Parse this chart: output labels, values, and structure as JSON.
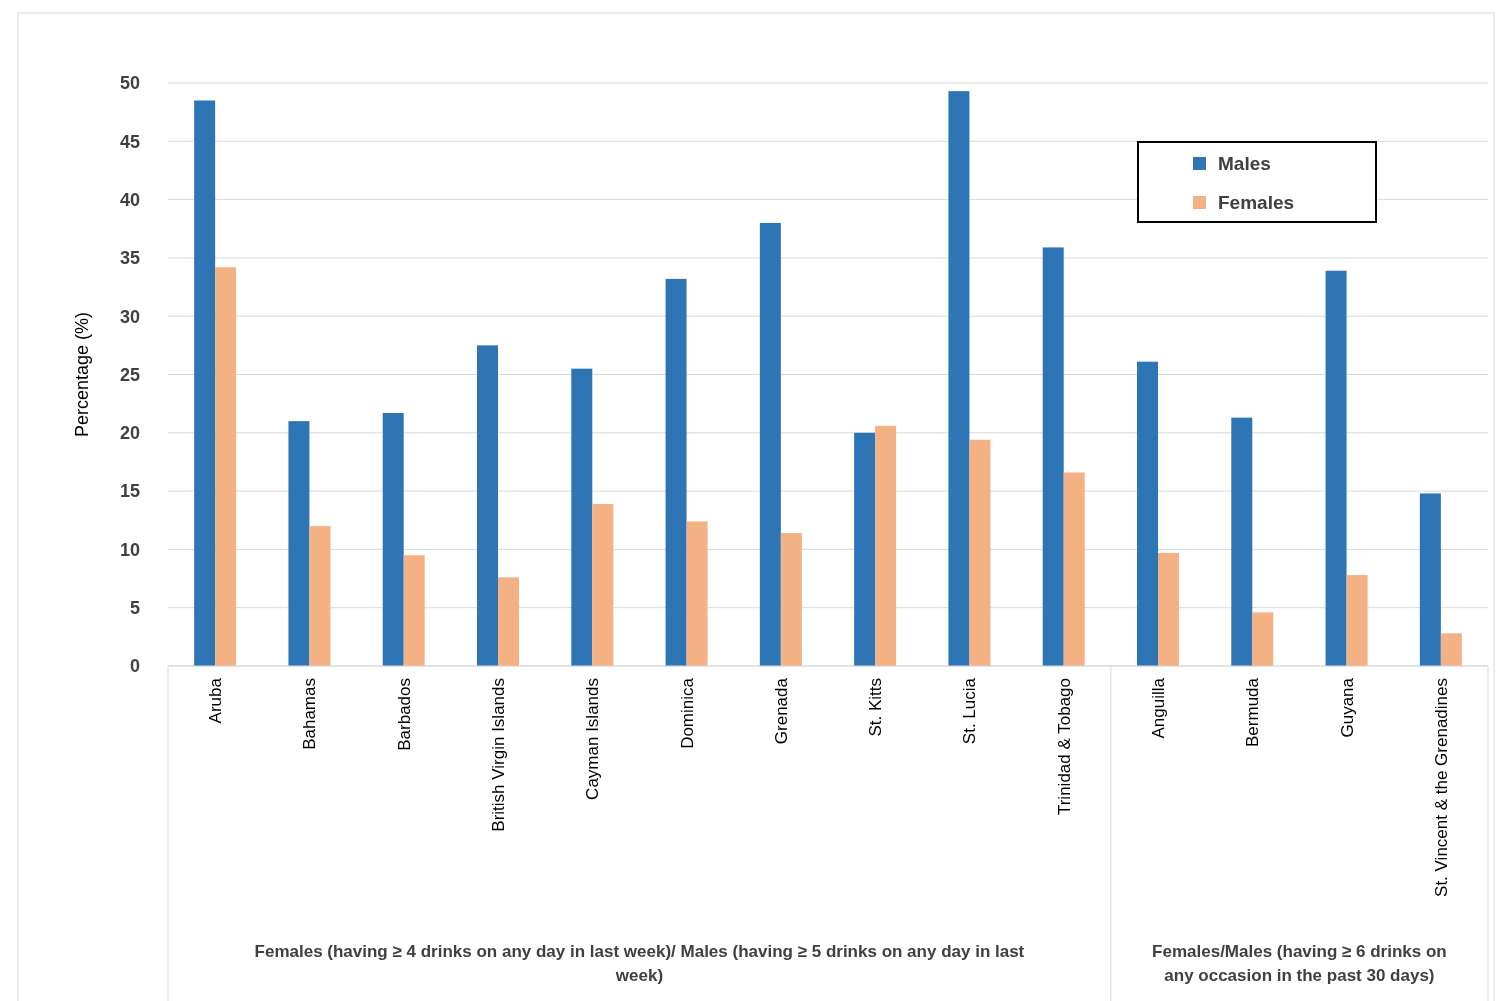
{
  "chart_data": {
    "type": "bar",
    "ylabel": "Percentage (%)",
    "categories": [
      "Aruba",
      "Bahamas",
      "Barbados",
      "British Virgin Islands",
      "Cayman Islands",
      "Dominica",
      "Grenada",
      "St. Kitts",
      "St. Lucia",
      "Trinidad & Tobago",
      "Anguilla",
      "Bermuda",
      "Guyana",
      "St. Vincent & the Grenadines"
    ],
    "series": [
      {
        "name": "Males",
        "color": "#2e75b6",
        "values": [
          48.5,
          21.0,
          21.7,
          27.5,
          25.5,
          33.2,
          38.0,
          20.0,
          49.3,
          35.9,
          26.1,
          21.3,
          33.9,
          14.8
        ]
      },
      {
        "name": "Females",
        "color": "#f4b183",
        "values": [
          34.2,
          12.0,
          9.5,
          7.6,
          13.9,
          12.4,
          11.4,
          20.6,
          19.4,
          16.6,
          9.7,
          4.6,
          7.8,
          2.8
        ]
      }
    ],
    "ylim": [
      0,
      50
    ],
    "yticks": [
      0,
      5,
      10,
      15,
      20,
      25,
      30,
      35,
      40,
      45,
      50
    ],
    "grid": "y",
    "legend": "top right",
    "annotations": [
      "Females (having ≥ 4 drinks on any day in last week)/ Males (having ≥ 5 drinks on any day in last week)",
      "Females/Males (having ≥ 6 drinks on any occasion in the past 30 days)"
    ]
  }
}
